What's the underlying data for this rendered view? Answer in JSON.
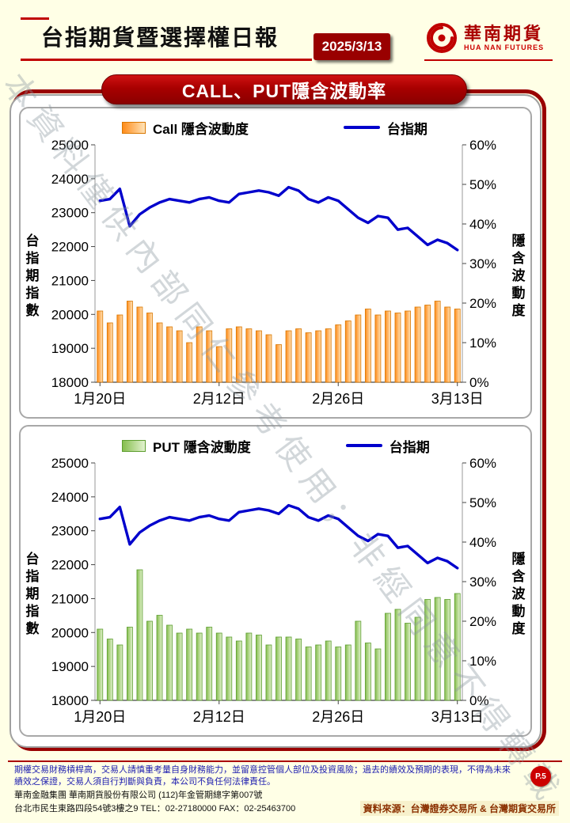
{
  "header": {
    "title": "台指期貨暨選擇權日報",
    "date": "2025/3/13",
    "logo": {
      "name": "華南期貨",
      "subtitle": "HUA NAN FUTURES"
    }
  },
  "banner": "CALL、PUT隱含波動率",
  "watermark": "本資料僅供內部同仁參考使用；非經同意不得轉載",
  "colors": {
    "accent_red": "#990000",
    "line_blue": "#0000CC",
    "call_orange": "#FF8C1A",
    "put_green": "#86BE4E",
    "background_cream": "#FFFFE6"
  },
  "chart_data": [
    {
      "type": "bar+line",
      "n_points": 37,
      "x_tick_labels": [
        "1月20日",
        "2月12日",
        "2月26日",
        "3月13日"
      ],
      "x_tick_indices": [
        0,
        12,
        24,
        36
      ],
      "left_axis": {
        "label": "台指期指數",
        "min": 18000,
        "max": 25000,
        "step": 1000
      },
      "right_axis": {
        "label": "隱含波動度",
        "min": 0,
        "max": 60,
        "step": 10,
        "suffix": "%"
      },
      "bar_series": {
        "name": "Call 隱含波動度",
        "axis": "right",
        "values": [
          18,
          15,
          17,
          20.5,
          19,
          17.5,
          15,
          14,
          13,
          10,
          14,
          13,
          9,
          13.5,
          14,
          13.5,
          13,
          12,
          9.5,
          13,
          13.5,
          12.5,
          13,
          13.5,
          14.5,
          15.5,
          17,
          18.5,
          17,
          18,
          17.5,
          18,
          19,
          19.5,
          20.5,
          19,
          18.5
        ]
      },
      "line_series": {
        "name": "台指期",
        "axis": "left",
        "values": [
          23350,
          23400,
          23700,
          22600,
          22950,
          23150,
          23300,
          23400,
          23350,
          23300,
          23400,
          23450,
          23350,
          23300,
          23550,
          23600,
          23650,
          23600,
          23500,
          23750,
          23650,
          23400,
          23300,
          23450,
          23350,
          23100,
          22850,
          22700,
          22900,
          22850,
          22500,
          22550,
          22300,
          22050,
          22200,
          22100,
          21900
        ]
      },
      "colors": {
        "bar_from": "#FF8C1A",
        "bar_to": "#FFE3B8",
        "bar_stroke": "#D97700",
        "line": "#0000CC"
      }
    },
    {
      "type": "bar+line",
      "n_points": 37,
      "x_tick_labels": [
        "1月20日",
        "2月12日",
        "2月26日",
        "3月13日"
      ],
      "x_tick_indices": [
        0,
        12,
        24,
        36
      ],
      "left_axis": {
        "label": "台指期指數",
        "min": 18000,
        "max": 25000,
        "step": 1000
      },
      "right_axis": {
        "label": "隱含波動度",
        "min": 0,
        "max": 60,
        "step": 10,
        "suffix": "%"
      },
      "bar_series": {
        "name": "PUT 隱含波動度",
        "axis": "right",
        "values": [
          18,
          15.5,
          14,
          18.5,
          33,
          20,
          21.5,
          19,
          17,
          18,
          17,
          18.5,
          17,
          16,
          15,
          17,
          16.5,
          14,
          16,
          16,
          15.5,
          13.5,
          14,
          15,
          13.5,
          14,
          20,
          14.5,
          13,
          22,
          23,
          19.5,
          21,
          25.5,
          26,
          25.5,
          27
        ]
      },
      "line_series": {
        "name": "台指期",
        "axis": "left",
        "values": [
          23350,
          23400,
          23700,
          22600,
          22950,
          23150,
          23300,
          23400,
          23350,
          23300,
          23400,
          23450,
          23350,
          23300,
          23550,
          23600,
          23650,
          23600,
          23500,
          23750,
          23650,
          23400,
          23300,
          23450,
          23350,
          23100,
          22850,
          22700,
          22900,
          22850,
          22500,
          22550,
          22300,
          22050,
          22200,
          22100,
          21900
        ]
      },
      "colors": {
        "bar_from": "#86BE4E",
        "bar_to": "#E2F2CF",
        "bar_stroke": "#5E9E30",
        "line": "#0000CC"
      }
    }
  ],
  "footer": {
    "disclaimer": "期權交易財務槓桿高，交易人請慎重考量自身財務能力，並留意控管個人部位及投資風險；過去的績效及預期的表現，不得為未來績效之保證，交易人須自行判斷與負責，本公司不負任何法律責任。",
    "company": "華南金融集團 華南期貨股份有限公司 (112)年金管期總字第007號",
    "address": "台北市民生東路四段54號3樓之9  TEL：02-27180000  FAX：02-25463700",
    "page": "P.5",
    "source": "資料來源：台灣證券交易所 & 台灣期貨交易所"
  }
}
